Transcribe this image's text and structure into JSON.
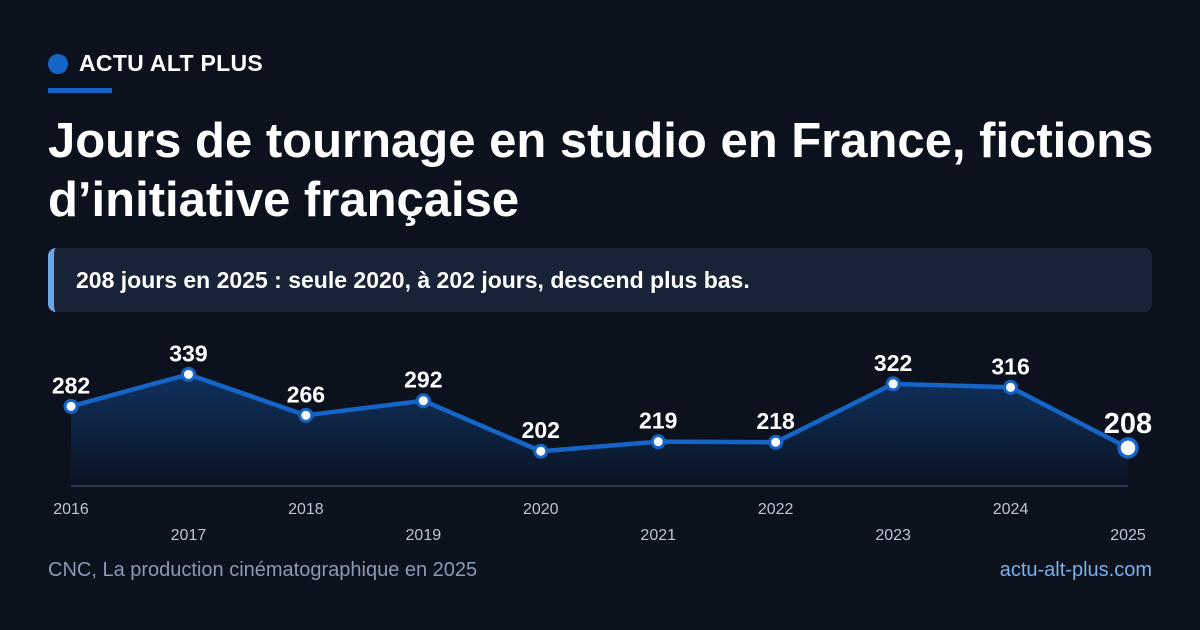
{
  "brand": {
    "name": "ACTU ALT PLUS",
    "accent_color": "#1565c8"
  },
  "title": "Jours de tournage en studio en France, fictions d’initiative française",
  "callout": "208 jours en 2025 : seule 2020, à 202 jours, descend plus bas.",
  "footer": {
    "source": "CNC, La production cinématographique en 2025",
    "site": "actu-alt-plus.com"
  },
  "chart_data": {
    "type": "area",
    "x": [
      "2016",
      "2017",
      "2018",
      "2019",
      "2020",
      "2021",
      "2022",
      "2023",
      "2024",
      "2025"
    ],
    "values": [
      282,
      339,
      266,
      292,
      202,
      219,
      218,
      322,
      316,
      208
    ],
    "data_labels": [
      "282",
      "339",
      "266",
      "292",
      "202",
      "219",
      "218",
      "322",
      "316",
      "208"
    ],
    "highlight": "2025",
    "xlabel": "",
    "ylabel": "",
    "ylim": [
      140,
      340
    ],
    "grid": false,
    "line_color": "#1565c8"
  }
}
